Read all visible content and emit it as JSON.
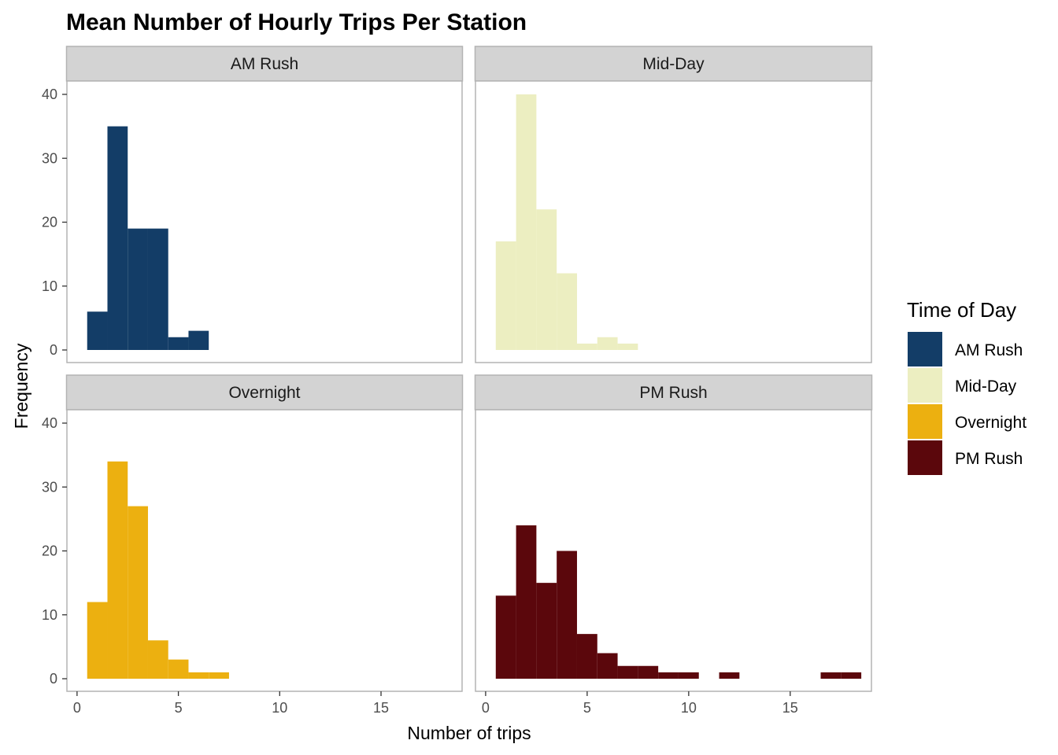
{
  "chart_data": {
    "type": "bar",
    "subtype": "faceted-histogram",
    "title": "Mean Number of Hourly Trips Per Station",
    "xlabel": "Number of trips",
    "ylabel": "Frequency",
    "xlim": [
      -0.5,
      19.0
    ],
    "ylim": [
      0,
      42
    ],
    "x_ticks": [
      0,
      5,
      10,
      15
    ],
    "y_ticks": [
      0,
      10,
      20,
      30,
      40
    ],
    "grid": false,
    "legend": {
      "title": "Time of Day",
      "position": "right"
    },
    "bin_width": 1,
    "series": [
      {
        "name": "AM Rush",
        "color": "#133D67",
        "bins": [
          [
            0.5,
            1.5,
            6
          ],
          [
            1.5,
            2.5,
            35
          ],
          [
            2.5,
            3.5,
            19
          ],
          [
            3.5,
            4.5,
            19
          ],
          [
            4.5,
            5.5,
            2
          ],
          [
            5.5,
            6.5,
            3
          ]
        ]
      },
      {
        "name": "Mid-Day",
        "color": "#ECEEC1",
        "bins": [
          [
            0.5,
            1.5,
            17
          ],
          [
            1.5,
            2.5,
            40
          ],
          [
            2.5,
            3.5,
            22
          ],
          [
            3.5,
            4.5,
            12
          ],
          [
            4.5,
            5.5,
            1
          ],
          [
            5.5,
            6.5,
            2
          ],
          [
            6.5,
            7.5,
            1
          ]
        ]
      },
      {
        "name": "Overnight",
        "color": "#ECB010",
        "bins": [
          [
            0.5,
            1.5,
            12
          ],
          [
            1.5,
            2.5,
            34
          ],
          [
            2.5,
            3.5,
            27
          ],
          [
            3.5,
            4.5,
            6
          ],
          [
            4.5,
            5.5,
            3
          ],
          [
            5.5,
            6.5,
            1
          ],
          [
            6.5,
            7.5,
            1
          ]
        ]
      },
      {
        "name": "PM Rush",
        "color": "#5B070C",
        "bins": [
          [
            0.5,
            1.5,
            13
          ],
          [
            1.5,
            2.5,
            24
          ],
          [
            2.5,
            3.5,
            15
          ],
          [
            3.5,
            4.5,
            20
          ],
          [
            4.5,
            5.5,
            7
          ],
          [
            5.5,
            6.5,
            4
          ],
          [
            6.5,
            7.5,
            2
          ],
          [
            7.5,
            8.5,
            2
          ],
          [
            8.5,
            9.5,
            1
          ],
          [
            9.5,
            10.5,
            1
          ],
          [
            11.5,
            12.5,
            1
          ],
          [
            16.5,
            17.5,
            1
          ],
          [
            17.5,
            18.5,
            1
          ]
        ]
      }
    ]
  }
}
